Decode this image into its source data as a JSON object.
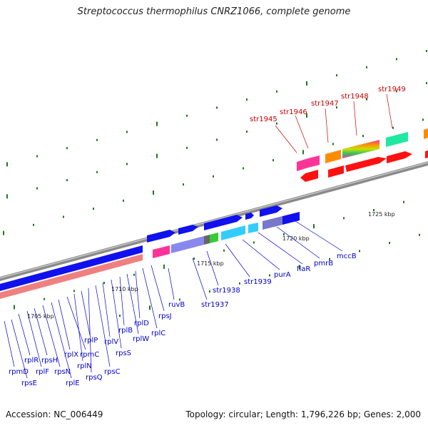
{
  "title": "Streptococcus thermophilus CNRZ1066, complete genome",
  "footer": {
    "accession": "Accession: NC_006449",
    "info": "Topology: circular; Length: 1,796,226 bp; Genes: 2,000"
  },
  "colors": {
    "forward_label": "#0000cc",
    "reverse_label": "#cc0000",
    "backbone": "#8a8a8a",
    "tick": "#1a7a1a"
  },
  "scale_labels": [
    "1705 kbp",
    "1710 kbp",
    "1715 kbp",
    "1720 kbp",
    "1725 kbp"
  ],
  "forward_labels": [
    "rpmD",
    "rpsE",
    "rplR",
    "rplF",
    "rpsH",
    "rpsN",
    "rplE",
    "rplX",
    "rpmC",
    "rplN",
    "rplP",
    "rpsQ",
    "rpsC",
    "rplV",
    "rpsS",
    "rplB",
    "rplW",
    "rplD",
    "rplC",
    "rpsJ",
    "ruvB",
    "str1937",
    "str1938",
    "str1939",
    "purA",
    "flaR",
    "pmrB",
    "mccB"
  ],
  "reverse_labels": [
    "str1945",
    "str1946",
    "str1947",
    "str1948",
    "str1949"
  ]
}
